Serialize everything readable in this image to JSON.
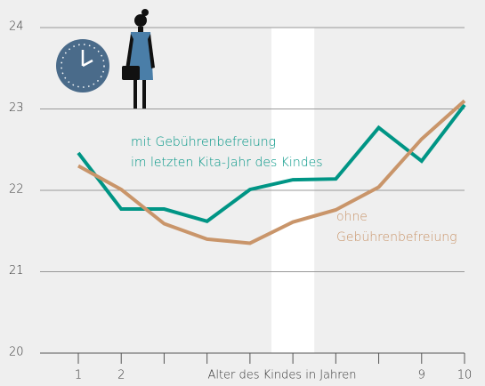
{
  "chart_data": {
    "type": "line",
    "x": [
      1,
      2,
      3,
      4,
      5,
      6,
      7,
      8,
      9,
      10
    ],
    "xlim": [
      1,
      10
    ],
    "xticks": [
      1,
      2,
      9,
      10
    ],
    "xminor": [
      3,
      4,
      5,
      6,
      7,
      8
    ],
    "xlabel": "Alter des Kindes in Jahren",
    "ylim": [
      20,
      24
    ],
    "yticks": [
      20,
      21,
      22,
      23,
      24
    ],
    "grid": true,
    "highlight_x": [
      5.5,
      6.5
    ],
    "series": [
      {
        "label_lines": [
          "mit Gebührenbefreiung",
          "im letzten Kita-Jahr des Kindes"
        ],
        "color": "#009585",
        "values": [
          22.46,
          21.77,
          21.77,
          21.62,
          22.01,
          22.13,
          22.14,
          22.77,
          22.36,
          23.05
        ]
      },
      {
        "label_lines": [
          "ohne",
          "Gebührenbefreiung"
        ],
        "color": "#c9956a",
        "values": [
          22.3,
          22.01,
          21.59,
          21.4,
          21.35,
          21.61,
          21.76,
          22.04,
          22.63,
          23.1
        ]
      }
    ]
  }
}
